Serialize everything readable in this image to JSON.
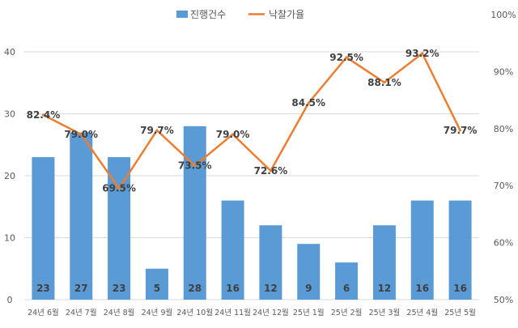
{
  "chart_data": {
    "type": "bar+line",
    "title": "",
    "categories": [
      "24년 6월",
      "24년 7월",
      "24년 8월",
      "24년 9월",
      "24년 10월",
      "24년 11월",
      "24년 12월",
      "25년 1월",
      "25년 2월",
      "25년 3월",
      "25년 4월",
      "25년 5월"
    ],
    "series": [
      {
        "name": "진행건수",
        "type": "bar",
        "axis": "left",
        "color": "#5B9BD5",
        "values": [
          23,
          27,
          23,
          5,
          28,
          16,
          12,
          9,
          6,
          12,
          16,
          16
        ],
        "labels": [
          "23",
          "27",
          "23",
          "5",
          "28",
          "16",
          "12",
          "9",
          "6",
          "12",
          "16",
          "16"
        ]
      },
      {
        "name": "낙찰가율",
        "type": "line",
        "axis": "right",
        "color": "#ED7D31",
        "values": [
          82.4,
          79.0,
          69.5,
          79.7,
          73.5,
          79.0,
          72.6,
          84.5,
          92.5,
          88.1,
          93.2,
          79.7
        ],
        "labels": [
          "82.4%",
          "79.0%",
          "69.5%",
          "79.7%",
          "73.5%",
          "79.0%",
          "72.6%",
          "84.5%",
          "92.5%",
          "88.1%",
          "93.2%",
          "79.7%"
        ]
      }
    ],
    "y_left": {
      "min": 0,
      "max": 40,
      "ticks": [
        "0",
        "10",
        "20",
        "30",
        "40"
      ]
    },
    "y_right": {
      "min": 50,
      "max": 100,
      "ticks": [
        "50%",
        "60%",
        "70%",
        "80%",
        "90%",
        "100%"
      ]
    },
    "legend": "top-center",
    "grid": true
  }
}
